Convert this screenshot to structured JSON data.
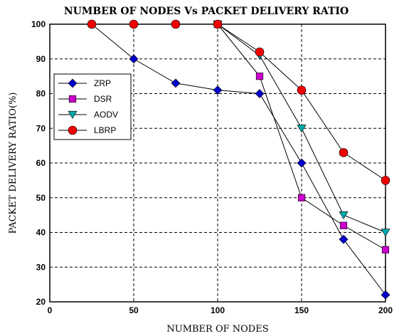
{
  "chart_data": {
    "type": "line",
    "title": "NUMBER OF NODES Vs PACKET DELIVERY RATIO",
    "xlabel": "NUMBER OF NODES",
    "ylabel": "PACKET DELIVERY RATIO(%)",
    "xlim": [
      0,
      200
    ],
    "ylim": [
      20,
      100
    ],
    "xticks": [
      0,
      50,
      100,
      150,
      200
    ],
    "yticks": [
      20,
      30,
      40,
      50,
      60,
      70,
      80,
      90,
      100
    ],
    "grid": true,
    "legend_position": "left",
    "series": [
      {
        "name": "ZRP",
        "marker": "diamond",
        "color": "#0000cc",
        "x": [
          25,
          50,
          75,
          100,
          125,
          150,
          175,
          200
        ],
        "y": [
          100,
          90,
          83,
          81,
          80,
          60,
          38,
          22
        ]
      },
      {
        "name": "DSR",
        "marker": "square",
        "color": "#cc00cc",
        "x": [
          100,
          125,
          150,
          175,
          200
        ],
        "y": [
          100,
          85,
          50,
          42,
          35
        ]
      },
      {
        "name": "AODV",
        "marker": "triangle-down",
        "color": "#00aaaa",
        "x": [
          100,
          125,
          150,
          175,
          200
        ],
        "y": [
          100,
          91,
          70,
          45,
          40
        ]
      },
      {
        "name": "LBRP",
        "marker": "circle",
        "color": "#ee0000",
        "x": [
          25,
          50,
          75,
          100,
          125,
          150,
          175,
          200
        ],
        "y": [
          100,
          100,
          100,
          100,
          92,
          81,
          63,
          55
        ]
      }
    ]
  }
}
